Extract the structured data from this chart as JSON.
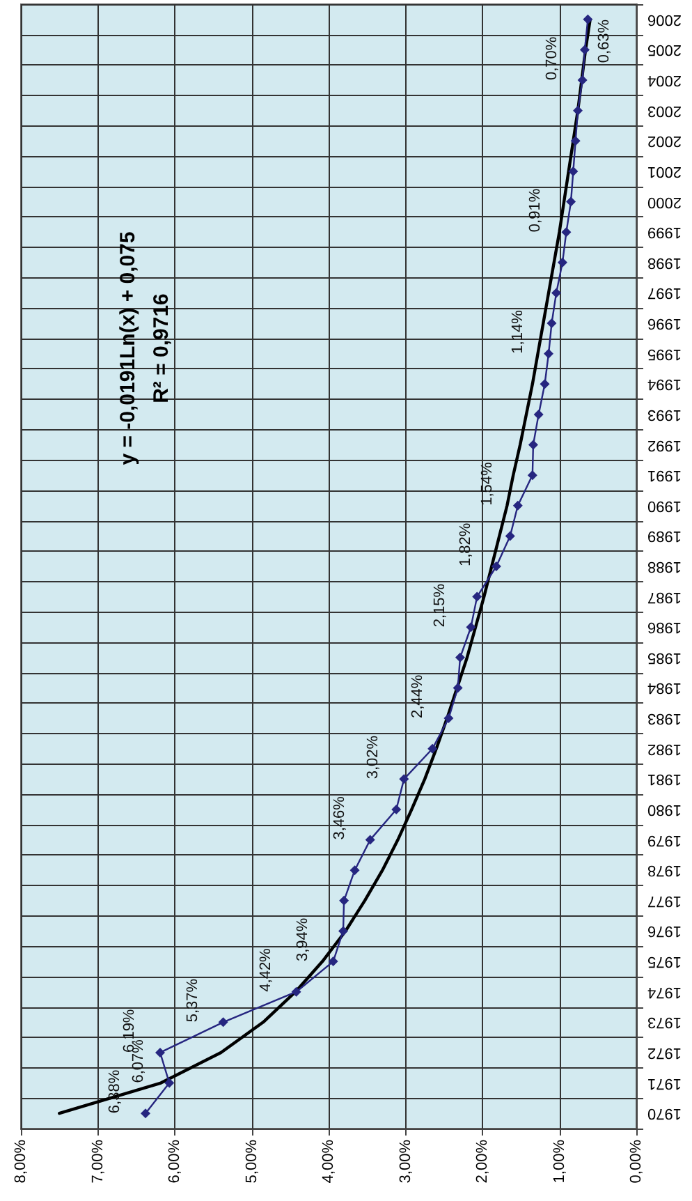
{
  "chart_data": {
    "type": "line",
    "categories": [
      "2006",
      "2005",
      "2004",
      "2003",
      "2002",
      "2001",
      "2000",
      "1999",
      "1998",
      "1997",
      "1996",
      "1995",
      "1994",
      "1993",
      "1992",
      "1991",
      "1990",
      "1989",
      "1988",
      "1987",
      "1986",
      "1985",
      "1984",
      "1983",
      "1982",
      "1981",
      "1980",
      "1979",
      "1978",
      "1977",
      "1976",
      "1975",
      "1974",
      "1973",
      "1972",
      "1971",
      "1970"
    ],
    "series": [
      {
        "color": "#262680",
        "marker": "diamond",
        "values": [
          0.63,
          0.67,
          0.7,
          0.76,
          0.79,
          0.82,
          0.85,
          0.91,
          0.96,
          1.04,
          1.1,
          1.14,
          1.19,
          1.27,
          1.34,
          1.35,
          1.54,
          1.64,
          1.82,
          2.07,
          2.15,
          2.29,
          2.32,
          2.44,
          2.65,
          3.02,
          3.12,
          3.46,
          3.66,
          3.8,
          3.81,
          3.94,
          4.42,
          5.37,
          6.19,
          6.07,
          6.38
        ],
        "value_labels": [
          "0,63%",
          null,
          "0,70%",
          null,
          null,
          null,
          null,
          "0,91%",
          null,
          null,
          null,
          "1,14%",
          null,
          null,
          null,
          null,
          "1,54%",
          null,
          "1,82%",
          null,
          "2,15%",
          null,
          null,
          "2,44%",
          null,
          "3,02%",
          null,
          "3,46%",
          null,
          null,
          null,
          "3,94%",
          "4,42%",
          "5,37%",
          "6,19%",
          "6,07%",
          "6,38%"
        ]
      },
      {
        "type": "line",
        "color": "#000000",
        "marker": "none",
        "values": [
          0.6,
          0.66,
          0.71,
          0.76,
          0.82,
          0.88,
          0.94,
          1.0,
          1.07,
          1.14,
          1.21,
          1.28,
          1.35,
          1.43,
          1.51,
          1.6,
          1.68,
          1.78,
          1.88,
          1.98,
          2.09,
          2.2,
          2.33,
          2.46,
          2.6,
          2.75,
          2.92,
          3.1,
          3.3,
          3.53,
          3.78,
          4.08,
          4.43,
          4.85,
          5.4,
          6.18,
          7.5
        ]
      }
    ],
    "orientation": "horizontal",
    "xlim": [
      8,
      0
    ],
    "xticks": [
      {
        "value": 8,
        "label": "8,00%"
      },
      {
        "value": 7,
        "label": "7,00%"
      },
      {
        "value": 6,
        "label": "6,00%"
      },
      {
        "value": 5,
        "label": "5,00%"
      },
      {
        "value": 4,
        "label": "4,00%"
      },
      {
        "value": 3,
        "label": "3,00%"
      },
      {
        "value": 2,
        "label": "2,00%"
      },
      {
        "value": 1,
        "label": "1,00%"
      },
      {
        "value": 0,
        "label": "0,00%"
      }
    ],
    "annotations": [
      "y = -0,0191Ln(x) + 0,075",
      "R² = 0,9716"
    ],
    "grid": true
  }
}
